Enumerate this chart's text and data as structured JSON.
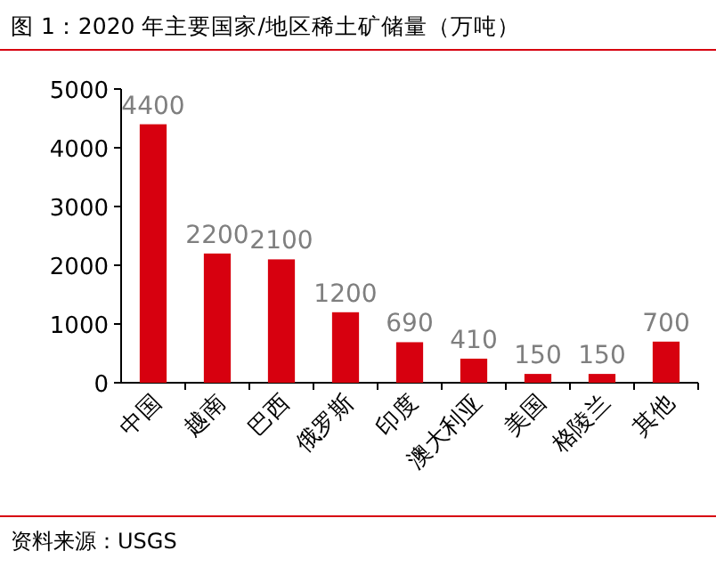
{
  "chart_data": {
    "type": "bar",
    "title": "图 1：2020 年主要国家/地区稀土矿储量（万吨）",
    "categories": [
      "中国",
      "越南",
      "巴西",
      "俄罗斯",
      "印度",
      "澳大利亚",
      "美国",
      "格陵兰",
      "其他"
    ],
    "values": [
      4400,
      2200,
      2100,
      1200,
      690,
      410,
      150,
      150,
      700
    ],
    "color": "#d7000f",
    "data_labels": true,
    "ylim": [
      0,
      5000
    ],
    "yticks": [
      0,
      1000,
      2000,
      3000,
      4000,
      5000
    ],
    "grid": false,
    "annotations": [
      "资料来源：USGS"
    ]
  }
}
